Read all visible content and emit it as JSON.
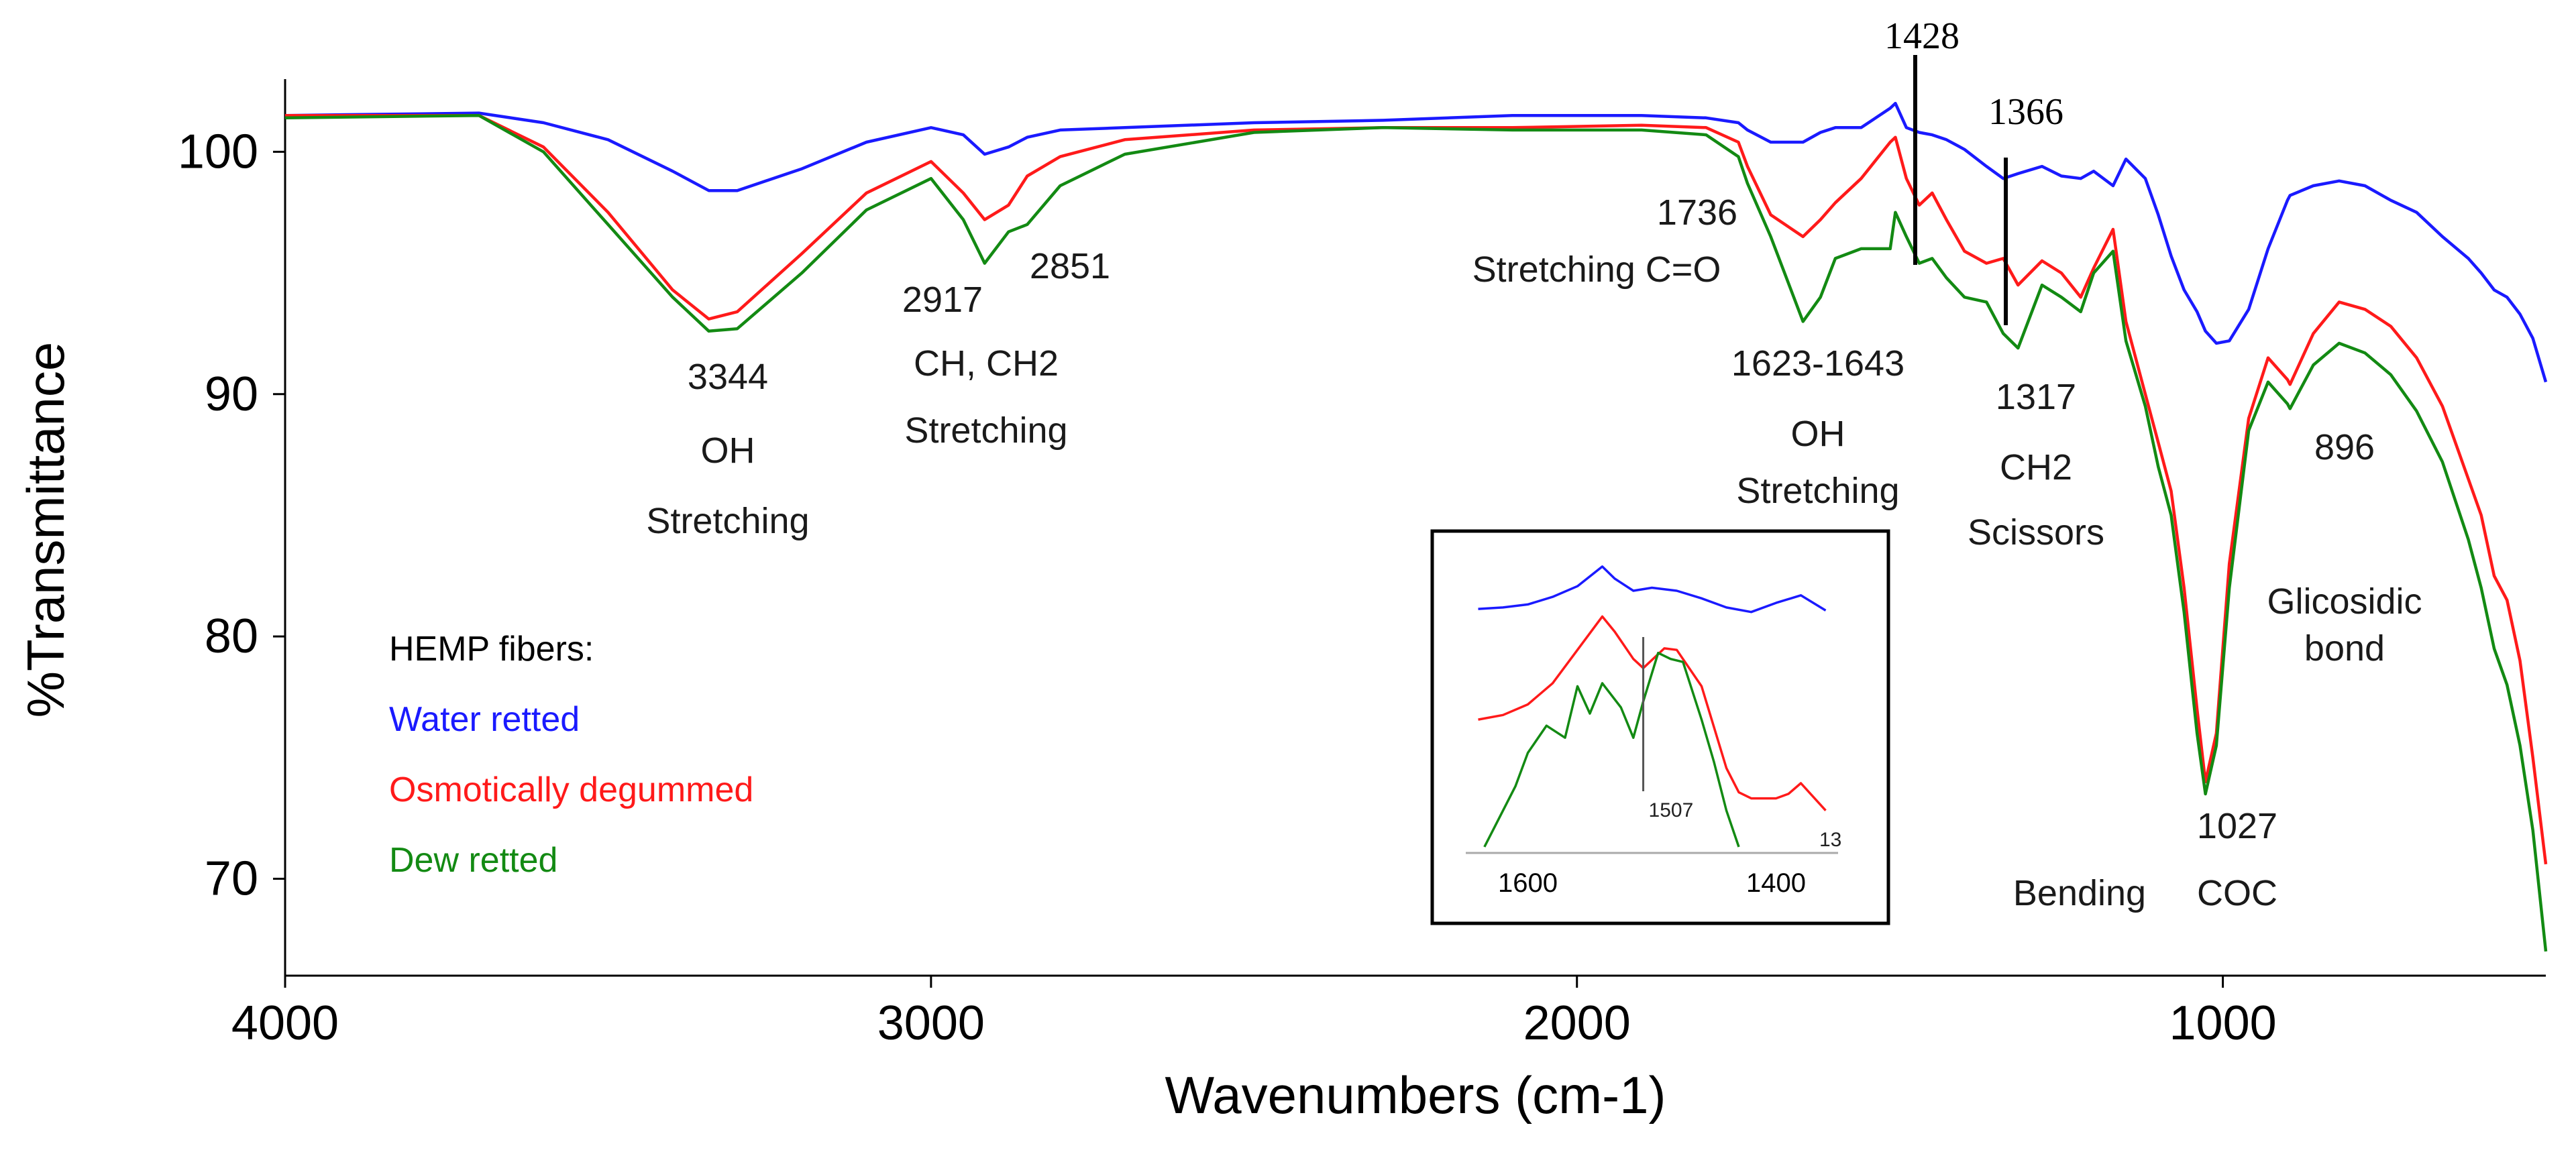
{
  "chart_data": {
    "type": "line",
    "title": "",
    "xlabel": "Wavenumbers (cm-1)",
    "ylabel": "%Transmittance",
    "xlim": [
      4000,
      500
    ],
    "ylim": [
      66,
      103
    ],
    "x_ticks": [
      "4000",
      "3000",
      "2000",
      "1000"
    ],
    "y_ticks": [
      "100",
      "90",
      "80",
      "70"
    ],
    "x_tick_values": [
      4000,
      3000,
      2000,
      1000
    ],
    "y_tick_values": [
      100,
      90,
      80,
      70
    ],
    "colors": {
      "water": "#1a1aff",
      "osmotic": "#ff1a1a",
      "dew": "#138a13"
    },
    "series": [
      {
        "name": "Water retted",
        "color": "#1a1aff",
        "x": [
          4000,
          3700,
          3600,
          3500,
          3400,
          3344,
          3300,
          3200,
          3100,
          3000,
          2950,
          2917,
          2880,
          2851,
          2800,
          2700,
          2500,
          2300,
          2100,
          1900,
          1800,
          1750,
          1736,
          1700,
          1650,
          1623,
          1600,
          1560,
          1515,
          1507,
          1490,
          1470,
          1450,
          1428,
          1400,
          1366,
          1340,
          1317,
          1280,
          1250,
          1220,
          1200,
          1170,
          1150,
          1120,
          1100,
          1080,
          1060,
          1040,
          1027,
          1010,
          990,
          960,
          930,
          900,
          896,
          860,
          820,
          780,
          740,
          700,
          660,
          620,
          600,
          580,
          560,
          540,
          520,
          500
        ],
        "y": [
          101.5,
          101.6,
          101.2,
          100.5,
          99.2,
          98.4,
          98.4,
          99.3,
          100.4,
          101.0,
          100.7,
          99.9,
          100.2,
          100.6,
          100.9,
          101.0,
          101.2,
          101.3,
          101.5,
          101.5,
          101.4,
          101.2,
          100.9,
          100.4,
          100.4,
          100.8,
          101.0,
          101.0,
          101.8,
          102.0,
          101.0,
          100.8,
          100.7,
          100.5,
          100.1,
          99.4,
          98.9,
          99.1,
          99.4,
          99.0,
          98.9,
          99.2,
          98.6,
          99.7,
          98.9,
          97.4,
          95.7,
          94.3,
          93.4,
          92.6,
          92.1,
          92.2,
          93.5,
          96.0,
          98.0,
          98.2,
          98.6,
          98.8,
          98.6,
          98.0,
          97.5,
          96.5,
          95.6,
          95.0,
          94.3,
          94.0,
          93.3,
          92.3,
          90.5
        ]
      },
      {
        "name": "Osmotically degummed",
        "color": "#ff1a1a",
        "x": [
          4000,
          3700,
          3600,
          3500,
          3400,
          3344,
          3300,
          3200,
          3100,
          3000,
          2950,
          2917,
          2880,
          2851,
          2800,
          2700,
          2500,
          2300,
          2100,
          1900,
          1800,
          1750,
          1736,
          1700,
          1650,
          1623,
          1600,
          1560,
          1515,
          1507,
          1490,
          1470,
          1450,
          1428,
          1400,
          1366,
          1340,
          1317,
          1280,
          1250,
          1220,
          1200,
          1170,
          1150,
          1120,
          1100,
          1080,
          1060,
          1040,
          1027,
          1010,
          990,
          960,
          930,
          900,
          896,
          860,
          820,
          780,
          740,
          700,
          660,
          620,
          600,
          580,
          560,
          540,
          520,
          500
        ],
        "y": [
          101.5,
          101.5,
          100.2,
          97.5,
          94.3,
          93.1,
          93.4,
          95.8,
          98.3,
          99.6,
          98.3,
          97.2,
          97.8,
          99.0,
          99.8,
          100.5,
          100.9,
          101.0,
          101.0,
          101.1,
          101.0,
          100.4,
          99.4,
          97.4,
          96.5,
          97.2,
          97.9,
          98.9,
          100.4,
          100.6,
          98.9,
          97.8,
          98.3,
          97.2,
          95.9,
          95.4,
          95.6,
          94.5,
          95.5,
          95.0,
          94.0,
          95.2,
          96.8,
          93.0,
          90.0,
          88.0,
          86.0,
          82.0,
          77.0,
          74.0,
          76.0,
          83.0,
          89.0,
          91.5,
          90.6,
          90.4,
          92.5,
          93.8,
          93.5,
          92.8,
          91.5,
          89.5,
          86.5,
          85.0,
          82.5,
          81.5,
          79.0,
          75.0,
          70.6
        ]
      },
      {
        "name": "Dew retted",
        "color": "#138a13",
        "x": [
          4000,
          3700,
          3600,
          3500,
          3400,
          3344,
          3300,
          3200,
          3100,
          3000,
          2950,
          2917,
          2880,
          2851,
          2800,
          2700,
          2500,
          2300,
          2100,
          1900,
          1800,
          1750,
          1736,
          1700,
          1650,
          1623,
          1600,
          1560,
          1515,
          1507,
          1490,
          1470,
          1450,
          1428,
          1400,
          1366,
          1340,
          1317,
          1280,
          1250,
          1220,
          1200,
          1170,
          1150,
          1120,
          1100,
          1080,
          1060,
          1040,
          1027,
          1010,
          990,
          960,
          930,
          900,
          896,
          860,
          820,
          780,
          740,
          700,
          660,
          620,
          600,
          580,
          560,
          540,
          520,
          500
        ],
        "y": [
          101.4,
          101.5,
          100.0,
          97.0,
          94.0,
          92.6,
          92.7,
          95.0,
          97.6,
          98.9,
          97.2,
          95.4,
          96.7,
          97.0,
          98.6,
          99.9,
          100.8,
          101.0,
          100.9,
          100.9,
          100.7,
          99.8,
          98.7,
          96.5,
          93.0,
          94.0,
          95.6,
          96.0,
          96.0,
          97.5,
          96.5,
          95.4,
          95.6,
          94.8,
          94.0,
          93.8,
          92.5,
          91.9,
          94.5,
          94.0,
          93.4,
          95.0,
          95.9,
          92.2,
          89.5,
          87.0,
          85.0,
          81.0,
          76.0,
          73.5,
          75.5,
          82.0,
          88.5,
          90.5,
          89.6,
          89.4,
          91.2,
          92.1,
          91.7,
          90.8,
          89.3,
          87.2,
          84.0,
          82.0,
          79.5,
          78.0,
          75.5,
          72.0,
          67.0
        ]
      }
    ],
    "legend": {
      "placement": "left",
      "title": "HEMP fibers:",
      "entries": [
        {
          "label": "Water retted",
          "color": "#1a1aff"
        },
        {
          "label": "Osmotically degummed",
          "color": "#ff1a1a"
        },
        {
          "label": "Dew retted",
          "color": "#138a13"
        }
      ]
    },
    "annotations": {
      "oh_3344": [
        "3344",
        "OH",
        "Stretching"
      ],
      "ch_2917": "2917",
      "ch_2851": "2851",
      "ch_label": [
        "CH, CH2",
        "Stretching"
      ],
      "co_1736": "1736",
      "co_label": "Stretching C=O",
      "oh_1623": [
        "1623-1643",
        "OH",
        "Stretching"
      ],
      "top_1428": "1428",
      "top_1366": "1366",
      "ch2_1317": [
        "1317",
        "CH2",
        "Scissors"
      ],
      "gly_896": [
        "896",
        "Glicosidic",
        "bond"
      ],
      "coc_1027": [
        "1027",
        "COC"
      ],
      "bending": "Bending"
    },
    "inset": {
      "xlim": [
        1650,
        1350
      ],
      "x_ticks": [
        "1600",
        "1400"
      ],
      "x_tick_values": [
        1600,
        1400
      ],
      "marker_label": "1507",
      "marker_x": 1507,
      "partial_label": "13",
      "series": [
        {
          "name": "Water retted",
          "color": "#1a1aff",
          "x": [
            1640,
            1620,
            1600,
            1580,
            1560,
            1540,
            1530,
            1515,
            1500,
            1480,
            1460,
            1440,
            1420,
            1400,
            1380,
            1360
          ],
          "y": [
            80.5,
            81.0,
            82.0,
            84.5,
            88.0,
            94.5,
            90.5,
            86.5,
            87.5,
            86.5,
            84.0,
            81.0,
            79.5,
            82.5,
            85.0,
            80.0
          ]
        },
        {
          "name": "Osmotically degummed",
          "color": "#ff1a1a",
          "x": [
            1640,
            1620,
            1600,
            1580,
            1560,
            1540,
            1530,
            1515,
            1507,
            1490,
            1480,
            1460,
            1440,
            1430,
            1420,
            1400,
            1390,
            1380,
            1360
          ],
          "y": [
            44.0,
            45.5,
            49.0,
            56.0,
            67.0,
            78.0,
            73.0,
            64.0,
            61.0,
            67.5,
            67.0,
            55.0,
            28.0,
            20.0,
            18.0,
            18.0,
            19.5,
            23.0,
            14.0
          ]
        },
        {
          "name": "Dew retted",
          "color": "#138a13",
          "x": [
            1635,
            1625,
            1610,
            1600,
            1585,
            1570,
            1560,
            1550,
            1540,
            1525,
            1515,
            1507,
            1495,
            1485,
            1475,
            1460,
            1450,
            1440,
            1430
          ],
          "y": [
            2.0,
            10.0,
            22.0,
            33.0,
            42.0,
            38.0,
            55.0,
            46.0,
            56.0,
            48.0,
            38.0,
            50.0,
            66.0,
            64.0,
            63.0,
            44.0,
            30.0,
            14.0,
            2.0
          ]
        }
      ]
    }
  }
}
